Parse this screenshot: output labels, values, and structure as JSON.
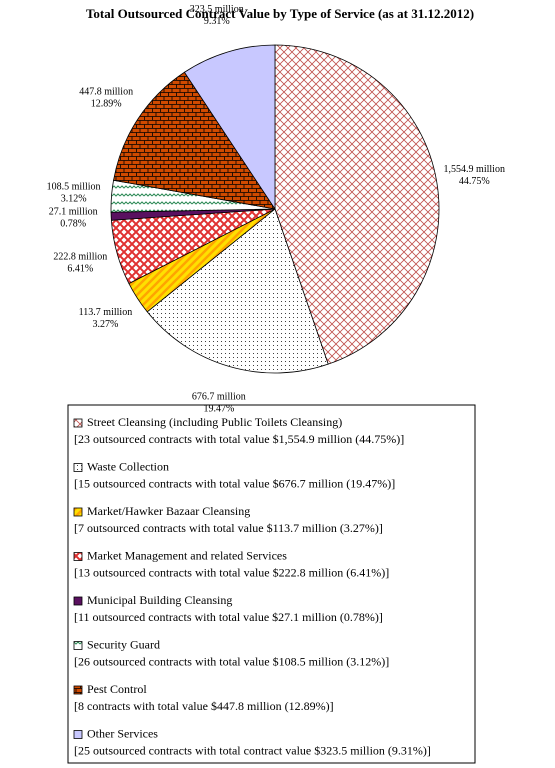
{
  "chart_data": {
    "type": "pie",
    "title": "Total Outsourced Contract Value by Type of Service (as at 31.12.2012)",
    "categories": [
      "Street Cleansing (including Public Toilets Cleansing)",
      "Waste Collection",
      "Market/Hawker Bazaar Cleansing",
      "Market Management and related Services",
      "Municipal Building Cleansing",
      "Security Guard",
      "Pest Control",
      "Other Services"
    ],
    "values": [
      1554.9,
      676.7,
      113.7,
      222.8,
      27.1,
      108.5,
      447.8,
      323.5
    ],
    "value_labels": [
      "1,554.9 million",
      "676.7 million",
      "113.7 million",
      "222.8 million",
      "27.1 million",
      "108.5 million",
      "447.8 million",
      "323.5 million"
    ],
    "shares": [
      44.75,
      19.47,
      3.27,
      6.41,
      0.78,
      3.12,
      12.89,
      9.31
    ],
    "share_labels": [
      "44.75%",
      "19.47%",
      "3.27%",
      "6.41%",
      "0.78%",
      "3.12%",
      "12.89%",
      "9.31%"
    ],
    "legend_details": [
      "[23 outsourced contracts with total value $1,554.9 million (44.75%)]",
      "[15 outsourced contracts with total value $676.7 million (19.47%)]",
      "[7 outsourced contracts with total value $113.7 million (3.27%)]",
      "[13 outsourced contracts with total value $222.8 million (6.41%)]",
      "[11 outsourced contracts with total value $27.1 million (0.78%)]",
      "[26 outsourced contracts with total value $108.5 million (3.12%)]",
      "[8 contracts with total value $447.8 million (12.89%)]",
      "[25 outsourced contracts with total contract value $323.5 million (9.31%)]"
    ],
    "colors": [
      "#c0504d",
      "#404040",
      "#ffa500",
      "#e03030",
      "#5a1060",
      "#2e8b57",
      "#d04a00",
      "#c8c8ff"
    ],
    "fill_patterns": [
      "crosshatch",
      "dots",
      "stripes",
      "checker",
      "solid",
      "zigzag",
      "brick",
      "solid"
    ],
    "start_angle": 0,
    "direction": "clockwise"
  }
}
